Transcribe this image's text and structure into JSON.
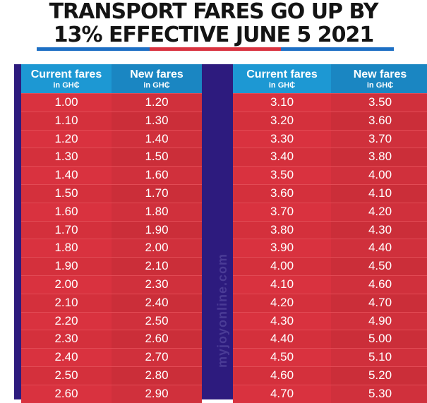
{
  "headline": {
    "line1": "TRANSPORT FARES GO UP BY",
    "line2": "13% EFFECTIVE JUNE 5 2021"
  },
  "colors": {
    "rule_blue": "#1d6fc4",
    "rule_red": "#d9323f",
    "panel": "#2d1b7e",
    "header": "#1d98d3",
    "row": "#d9323f"
  },
  "watermark": "myjoyonline.com",
  "left_table": {
    "headers": [
      {
        "main": "Current fares",
        "sub": "in GH₵"
      },
      {
        "main": "New fares",
        "sub": "in GH₵"
      }
    ],
    "rows": [
      [
        "1.00",
        "1.20"
      ],
      [
        "1.10",
        "1.30"
      ],
      [
        "1.20",
        "1.40"
      ],
      [
        "1.30",
        "1.50"
      ],
      [
        "1.40",
        "1.60"
      ],
      [
        "1.50",
        "1.70"
      ],
      [
        "1.60",
        "1.80"
      ],
      [
        "1.70",
        "1.90"
      ],
      [
        "1.80",
        "2.00"
      ],
      [
        "1.90",
        "2.10"
      ],
      [
        "2.00",
        "2.30"
      ],
      [
        "2.10",
        "2.40"
      ],
      [
        "2.20",
        "2.50"
      ],
      [
        "2.30",
        "2.60"
      ],
      [
        "2.40",
        "2.70"
      ],
      [
        "2.50",
        "2.80"
      ],
      [
        "2.60",
        "2.90"
      ]
    ]
  },
  "right_table": {
    "headers": [
      {
        "main": "Current fares",
        "sub": "in GH₵"
      },
      {
        "main": "New fares",
        "sub": "in GH₵"
      }
    ],
    "rows": [
      [
        "3.10",
        "3.50"
      ],
      [
        "3.20",
        "3.60"
      ],
      [
        "3.30",
        "3.70"
      ],
      [
        "3.40",
        "3.80"
      ],
      [
        "3.50",
        "4.00"
      ],
      [
        "3.60",
        "4.10"
      ],
      [
        "3.70",
        "4.20"
      ],
      [
        "3.80",
        "4.30"
      ],
      [
        "3.90",
        "4.40"
      ],
      [
        "4.00",
        "4.50"
      ],
      [
        "4.10",
        "4.60"
      ],
      [
        "4.20",
        "4.70"
      ],
      [
        "4.30",
        "4.90"
      ],
      [
        "4.40",
        "5.00"
      ],
      [
        "4.50",
        "5.10"
      ],
      [
        "4.60",
        "5.20"
      ],
      [
        "4.70",
        "5.30"
      ]
    ]
  }
}
